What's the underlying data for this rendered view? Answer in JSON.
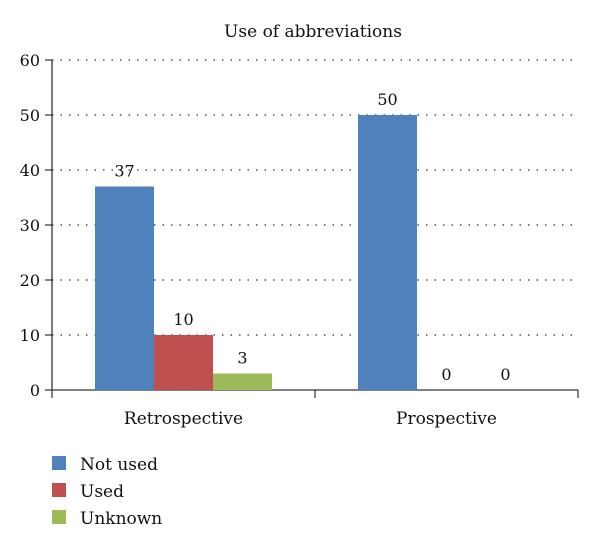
{
  "chart_data": {
    "type": "bar",
    "title": "Use of abbreviations",
    "xlabel": "",
    "ylabel": "",
    "categories": [
      "Retrospective",
      "Prospective"
    ],
    "series": [
      {
        "name": "Not used",
        "values": [
          37,
          50
        ],
        "color": "#4f81bd"
      },
      {
        "name": "Used",
        "values": [
          10,
          0
        ],
        "color": "#c0504d"
      },
      {
        "name": "Unknown",
        "values": [
          3,
          0
        ],
        "color": "#9bbb59"
      }
    ],
    "ylim": [
      0,
      60
    ],
    "yticks": [
      0,
      10,
      20,
      30,
      40,
      50,
      60
    ],
    "grid": "horizontal dotted",
    "legend": "bottom-left",
    "data_labels": true
  }
}
